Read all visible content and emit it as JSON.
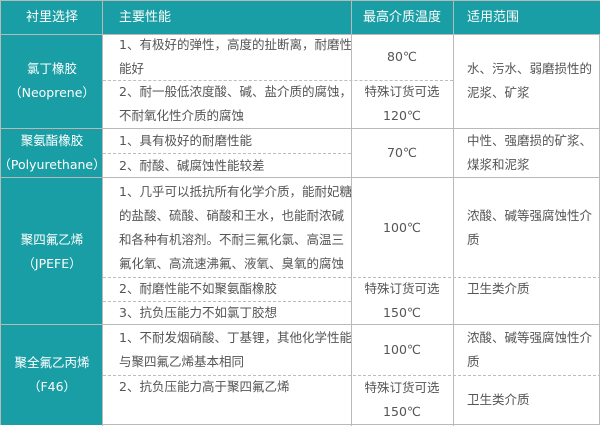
{
  "colors": {
    "accent": "#189ea4",
    "text": "#555555",
    "border": "#b9b9b9"
  },
  "header": [
    "衬里选择",
    "主要性能",
    "最高介质温度",
    "适用范围"
  ],
  "rows": [
    {
      "lining": [
        "氯丁橡胶",
        "（Neoprene）"
      ],
      "props": [
        [
          "1、有极好的弹性，高度的扯断离，耐磨性",
          "能好"
        ],
        [
          "2、耐一般低浓度酸、碱、盐介质的腐蚀，",
          "不耐氧化性介质的腐蚀"
        ]
      ],
      "temp": [
        [
          "80℃"
        ],
        [
          "特殊订货可选",
          "120℃"
        ]
      ],
      "scope": [
        [
          "水、污水、弱磨损性的",
          "泥浆、矿浆"
        ]
      ]
    },
    {
      "lining": [
        "聚氨酯橡胶",
        "（Polyurethane）"
      ],
      "props": [
        [
          "1、具有极好的耐磨性能"
        ],
        [
          "2、耐酸、碱腐蚀性能较差"
        ]
      ],
      "temp": [
        [
          "70℃"
        ]
      ],
      "scope": [
        [
          "中性、强磨损的矿浆、",
          "煤浆和泥浆"
        ]
      ]
    },
    {
      "lining": [
        "聚四氟乙烯",
        "（JPEFE）"
      ],
      "props": [
        [
          "1、几乎可以抵抗所有化学介质，能耐妃糖",
          "的盐酸、硫酸、硝酸和王水，也能耐浓碱",
          "和各种有机溶剂。不耐三氟化氯、高温三",
          "氟化氧、高流速沸氟、液氧、臭氧的腐蚀"
        ],
        [
          "2、耐磨性能不如聚氨酯橡胶"
        ],
        [
          "3、抗负压能力不如氯丁胶想"
        ]
      ],
      "temp": [
        [
          "100℃"
        ],
        [
          "特殊订货可选",
          "150℃"
        ]
      ],
      "scope": [
        [
          "浓酸、碱等强腐蚀性介",
          "质"
        ],
        [
          "卫生类介质"
        ]
      ]
    },
    {
      "lining": [
        "聚全氟乙丙烯",
        "（F46）"
      ],
      "props": [
        [
          "1、不耐发烟硝酸、丁基锂，其他化学性能",
          "与聚四氟乙烯基本相同"
        ],
        [
          "2、抗负压能力高于聚四氟乙烯"
        ]
      ],
      "temp": [
        [
          "100℃"
        ],
        [
          "特殊订货可选",
          "150℃"
        ]
      ],
      "scope": [
        [
          "浓酸、碱等强腐蚀性介",
          "质"
        ],
        [
          "卫生类介质"
        ]
      ]
    }
  ]
}
